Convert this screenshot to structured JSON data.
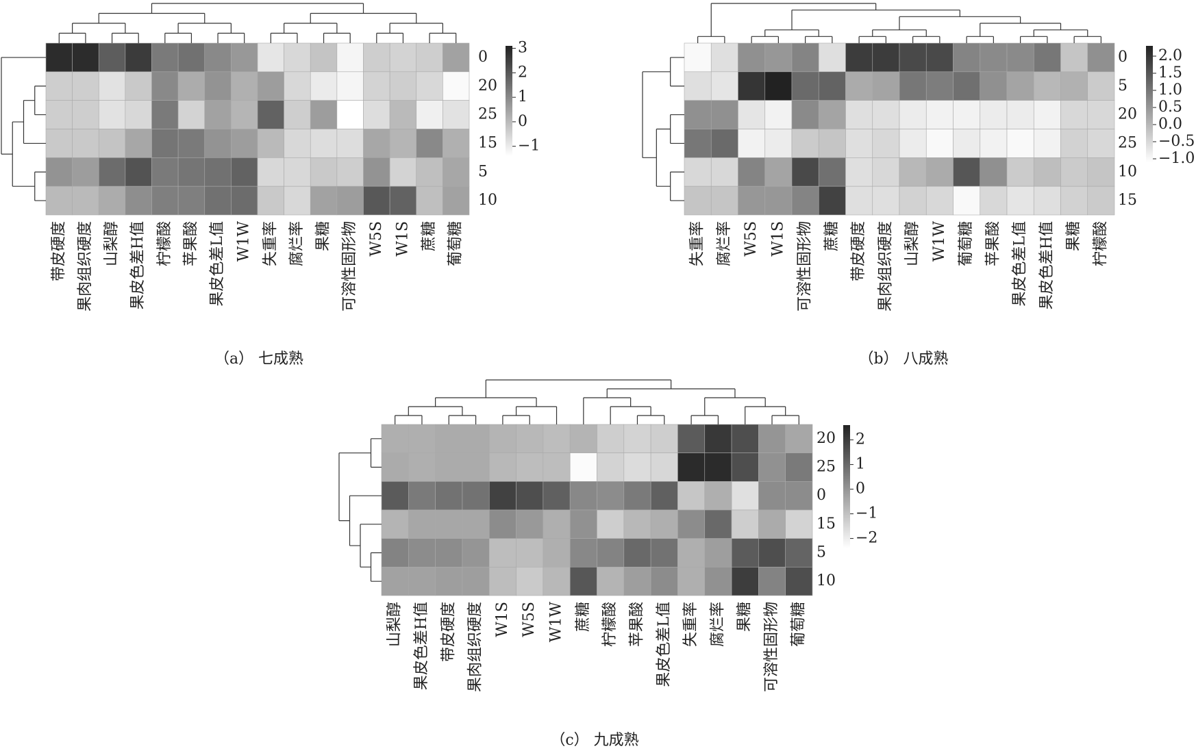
{
  "chart_data": [
    {
      "type": "heatmap",
      "caption": "（a） 七成熟",
      "categories": [
        "带皮硬度",
        "果肉组织硬度",
        "山梨醇",
        "果皮色差H值",
        "柠檬酸",
        "苹果酸",
        "果皮色差L值",
        "W1W",
        "失重率",
        "腐烂率",
        "果糖",
        "可溶性固形物",
        "W5S",
        "W1S",
        "蔗糖",
        "葡萄糖"
      ],
      "rows": [
        "0",
        "20",
        "25",
        "15",
        "5",
        "10"
      ],
      "values": [
        [
          2.9,
          2.9,
          1.9,
          2.6,
          1.3,
          1.5,
          1.0,
          0.7,
          -0.9,
          -0.6,
          -0.2,
          -1.2,
          -0.4,
          -0.5,
          -0.4,
          0.5
        ],
        [
          -0.4,
          -0.4,
          -0.8,
          -0.3,
          1.0,
          0.3,
          0.8,
          0.2,
          0.6,
          -0.6,
          -1.0,
          -1.2,
          -0.5,
          -0.4,
          -0.6,
          -1.3
        ],
        [
          -0.4,
          -0.4,
          -0.8,
          -0.6,
          1.3,
          -0.5,
          0.5,
          0.1,
          1.8,
          -0.4,
          0.6,
          -1.4,
          -0.7,
          0.0,
          -1.1,
          -0.8
        ],
        [
          -0.3,
          -0.3,
          -0.2,
          0.4,
          1.4,
          1.3,
          0.8,
          0.6,
          0.0,
          -0.6,
          -0.7,
          -0.7,
          0.4,
          0.1,
          1.0,
          0.2
        ],
        [
          0.8,
          0.6,
          1.6,
          2.1,
          1.3,
          1.4,
          1.5,
          1.8,
          -0.6,
          -0.6,
          -0.3,
          -0.4,
          0.8,
          -0.5,
          -0.1,
          0.4
        ],
        [
          0.0,
          0.0,
          0.3,
          0.9,
          1.2,
          1.2,
          1.5,
          1.6,
          -0.3,
          -0.6,
          0.5,
          0.6,
          2.0,
          1.8,
          -0.1,
          0.5
        ]
      ],
      "colorbar_lim": [
        -1.4,
        3.1
      ],
      "colorbar_ticks": [
        3,
        2,
        1,
        0,
        {
          "value": -1,
          "label": "−1"
        }
      ],
      "colormap": [
        "#ffffff",
        "#222222"
      ]
    },
    {
      "type": "heatmap",
      "caption": "（b） 八成熟",
      "categories": [
        "失重率",
        "腐烂率",
        "W5S",
        "W1S",
        "可溶性固形物",
        "蔗糖",
        "带皮硬度",
        "果肉组织硬度",
        "山梨醇",
        "W1W",
        "葡萄糖",
        "苹果酸",
        "果皮色差L值",
        "果皮色差H值",
        "果糖",
        "柠檬酸"
      ],
      "rows": [
        "0",
        "5",
        "20",
        "25",
        "10",
        "15"
      ],
      "values": [
        [
          -1.0,
          -0.6,
          0.6,
          0.5,
          0.8,
          -0.6,
          1.9,
          1.9,
          1.7,
          1.7,
          0.8,
          0.7,
          0.7,
          1.0,
          -0.2,
          0.6
        ],
        [
          -0.6,
          -0.7,
          2.0,
          2.3,
          1.2,
          1.3,
          0.2,
          0.3,
          1.0,
          0.9,
          1.1,
          0.6,
          0.3,
          0.0,
          0.1,
          -0.3
        ],
        [
          0.6,
          0.6,
          -0.7,
          -0.9,
          0.7,
          0.3,
          -0.6,
          -0.6,
          -0.8,
          -0.9,
          -0.9,
          -0.8,
          -0.8,
          -0.9,
          -0.5,
          -0.5
        ],
        [
          1.0,
          1.2,
          -0.9,
          -0.8,
          -0.3,
          -0.2,
          -0.6,
          -0.5,
          -0.8,
          -1.0,
          -0.8,
          -0.9,
          -1.0,
          -0.9,
          -0.4,
          -0.5
        ],
        [
          -0.5,
          -0.5,
          0.8,
          0.3,
          1.7,
          1.1,
          -0.6,
          -0.5,
          0.0,
          0.2,
          1.5,
          0.6,
          -0.3,
          -0.1,
          -0.3,
          -0.2
        ],
        [
          -0.2,
          -0.2,
          0.5,
          0.5,
          0.8,
          1.8,
          -0.6,
          -0.6,
          -0.4,
          -0.5,
          -1.0,
          -0.5,
          -0.7,
          -0.6,
          -0.4,
          -0.3
        ]
      ],
      "colorbar_lim": [
        -1.1,
        2.3
      ],
      "colorbar_ticks": [
        {
          "value": 2,
          "label": "2.0"
        },
        1.5,
        {
          "value": 1,
          "label": "1.0"
        },
        0.5,
        {
          "value": 0,
          "label": "0.0"
        },
        {
          "value": -0.5,
          "label": "−0.5"
        },
        {
          "value": -1,
          "label": "−1.0"
        }
      ],
      "colormap": [
        "#ffffff",
        "#222222"
      ]
    },
    {
      "type": "heatmap",
      "caption": "（c） 九成熟",
      "categories": [
        "山梨醇",
        "果皮色差H值",
        "带皮硬度",
        "果肉组织硬度",
        "W1S",
        "W5S",
        "W1W",
        "蔗糖",
        "柠檬酸",
        "苹果酸",
        "果皮色差L值",
        "失重率",
        "腐烂率",
        "果糖",
        "可溶性固形物",
        "葡萄糖"
      ],
      "rows": [
        "20",
        "25",
        "0",
        "15",
        "5",
        "10"
      ],
      "values": [
        [
          -0.6,
          -0.6,
          -0.5,
          -0.5,
          -0.7,
          -0.8,
          -0.9,
          -0.7,
          -1.3,
          -1.4,
          -1.3,
          1.3,
          2.1,
          1.6,
          0.0,
          -0.4
        ],
        [
          -0.5,
          -0.6,
          -0.5,
          -0.5,
          -0.8,
          -0.9,
          -0.9,
          -2.3,
          -1.4,
          -1.6,
          -1.5,
          2.4,
          2.4,
          1.6,
          0.1,
          0.6
        ],
        [
          1.3,
          0.6,
          0.8,
          0.8,
          1.9,
          1.6,
          1.2,
          0.3,
          0.2,
          0.6,
          1.2,
          -1.1,
          -0.6,
          -1.7,
          0.2,
          0.2
        ],
        [
          -0.7,
          -0.4,
          -0.4,
          -0.4,
          0.2,
          -0.1,
          -0.6,
          0.1,
          -1.3,
          -0.8,
          -0.6,
          0.2,
          1.0,
          -1.3,
          -0.5,
          -1.4
        ],
        [
          0.4,
          0.2,
          0.2,
          0.0,
          -0.9,
          -0.9,
          -0.6,
          0.3,
          0.4,
          1.0,
          0.8,
          -0.6,
          -0.2,
          1.3,
          1.6,
          1.1
        ],
        [
          -0.3,
          -0.3,
          -0.2,
          -0.2,
          -0.9,
          -1.2,
          -0.8,
          1.4,
          -0.7,
          -0.2,
          0.2,
          -0.6,
          0.1,
          2.0,
          0.4,
          1.6
        ]
      ],
      "colorbar_lim": [
        -2.4,
        2.6
      ],
      "colorbar_ticks": [
        2,
        1,
        0,
        {
          "value": -1,
          "label": "−1"
        },
        {
          "value": -2,
          "label": "−2"
        }
      ],
      "colormap": [
        "#ffffff",
        "#222222"
      ]
    }
  ]
}
